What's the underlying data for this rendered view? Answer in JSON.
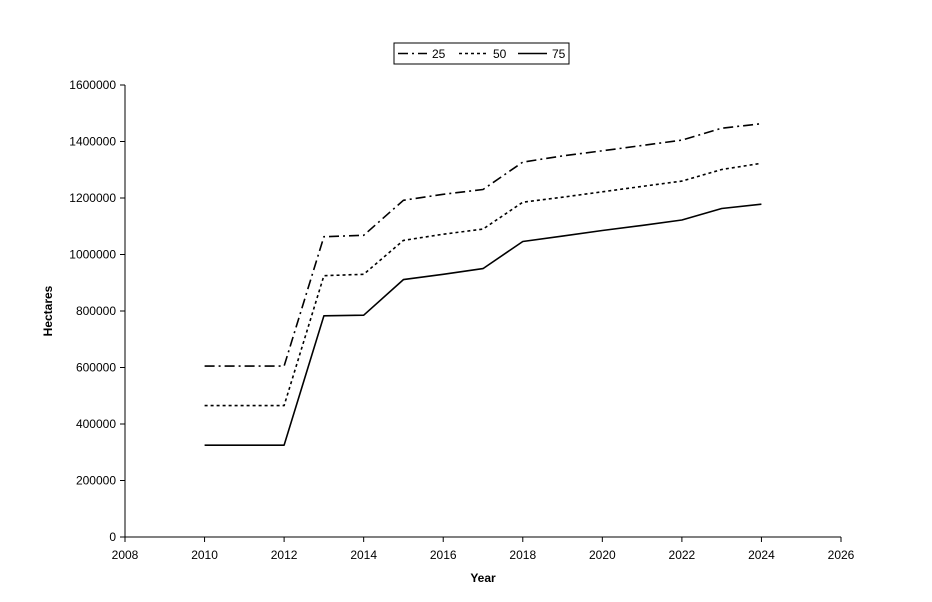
{
  "chart_data": {
    "type": "line",
    "title": "",
    "xlabel": "Year",
    "ylabel": "Hectares",
    "xlim": [
      2008,
      2026
    ],
    "ylim": [
      0,
      1600000
    ],
    "x_ticks": [
      "2008",
      "2010",
      "2012",
      "2014",
      "2016",
      "2018",
      "2020",
      "2022",
      "2024",
      "2026"
    ],
    "y_ticks": [
      "0",
      "200000",
      "400000",
      "600000",
      "800000",
      "1000000",
      "1200000",
      "1400000",
      "1600000"
    ],
    "grid": false,
    "legend_position": "top-center",
    "x": [
      2010,
      2011,
      2012,
      2013,
      2014,
      2015,
      2016,
      2017,
      2018,
      2019,
      2020,
      2021,
      2022,
      2023,
      2024
    ],
    "series": [
      {
        "name": "25",
        "style": "dash-dot",
        "values": [
          605000,
          605000,
          605000,
          1063000,
          1068000,
          1192000,
          1213000,
          1230000,
          1327000,
          1349000,
          1367000,
          1386000,
          1405000,
          1447000,
          1463000
        ]
      },
      {
        "name": "50",
        "style": "dotted",
        "values": [
          465000,
          465000,
          465000,
          925000,
          930000,
          1050000,
          1072000,
          1090000,
          1185000,
          1203000,
          1222000,
          1241000,
          1260000,
          1301000,
          1323000
        ]
      },
      {
        "name": "75",
        "style": "solid",
        "values": [
          325000,
          325000,
          325000,
          783000,
          785000,
          911000,
          930000,
          950000,
          1046000,
          1065000,
          1085000,
          1103000,
          1122000,
          1163000,
          1178000
        ]
      }
    ],
    "colors": {
      "line": "#000000",
      "axis": "#000000",
      "background": "#ffffff"
    }
  }
}
